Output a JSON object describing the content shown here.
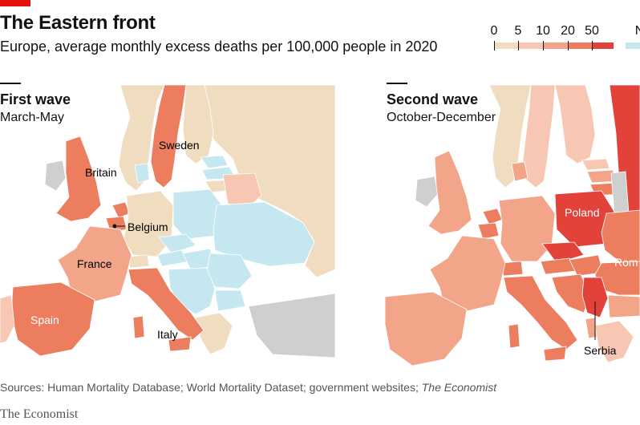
{
  "header": {
    "title": "The Eastern front",
    "subtitle": "Europe, average monthly excess deaths per 100,000 people in 2020"
  },
  "legend": {
    "labels": [
      "0",
      "5",
      "10",
      "20",
      "50",
      "No"
    ],
    "colors": [
      "#f0dcbf",
      "#f7c7b3",
      "#f3a58a",
      "#ec7d5f",
      "#e3423a",
      "#c5e7ef"
    ]
  },
  "panels": [
    {
      "title": "First wave",
      "subtitle": "March-May",
      "labels": {
        "sweden": "Sweden",
        "britain": "Britain",
        "belgium": "Belgium",
        "france": "France",
        "spain": "Spain",
        "italy": "Italy"
      }
    },
    {
      "title": "Second wave",
      "subtitle": "October-December",
      "labels": {
        "poland": "Poland",
        "romania": "Rom",
        "serbia": "Serbia"
      }
    }
  ],
  "colors": {
    "beige": "#f0dcbf",
    "pale": "#f7c7b3",
    "light": "#f3a58a",
    "mid": "#ec7d5f",
    "dark": "#e3423a",
    "nodata": "#c5e7ef",
    "grey": "#cfcfcf"
  },
  "footer": {
    "source": "Sources: Human Mortality Database; World Mortality Dataset; government websites;",
    "source_em": "The Economist",
    "brand": "The Economist"
  }
}
